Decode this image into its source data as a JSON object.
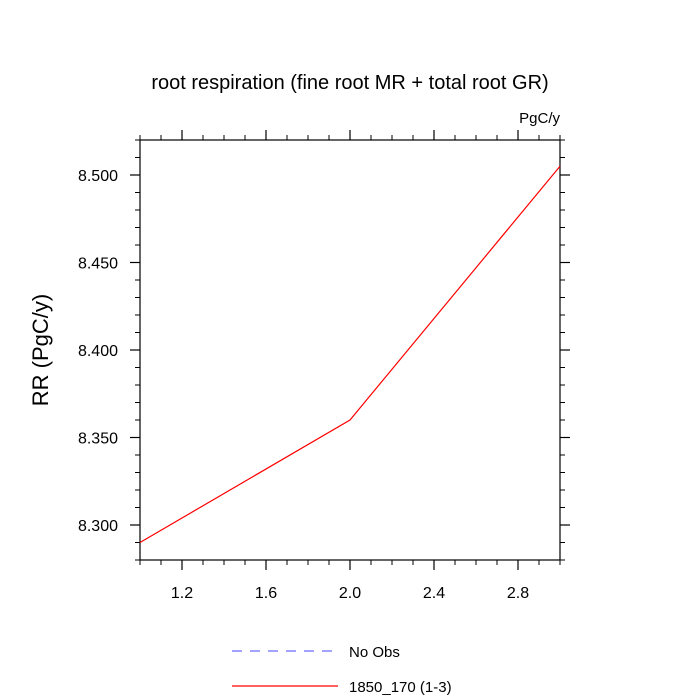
{
  "chart_data": {
    "type": "line",
    "title": "root respiration (fine root MR + total root GR)",
    "units_label": "PgC/y",
    "ylabel": "RR  (PgC/y)",
    "xlabel": "",
    "xlim": [
      1.0,
      3.0
    ],
    "ylim": [
      8.28,
      8.52
    ],
    "x_ticks": [
      1.2,
      1.6,
      2.0,
      2.4,
      2.8
    ],
    "x_tick_labels": [
      "1.2",
      "1.6",
      "2.0",
      "2.4",
      "2.8"
    ],
    "y_ticks": [
      8.3,
      8.35,
      8.4,
      8.45,
      8.5
    ],
    "y_tick_labels": [
      "8.300",
      "8.350",
      "8.400",
      "8.450",
      "8.500"
    ],
    "grid": false,
    "legend_position": "bottom",
    "series": [
      {
        "name": "1850_170 (1-3)",
        "color": "#ff0000",
        "dash": "solid",
        "x": [
          1,
          2,
          3
        ],
        "y": [
          8.29,
          8.36,
          8.505
        ]
      }
    ],
    "legend": [
      {
        "label": "No Obs",
        "color": "#6b6bff",
        "dash": "dashed"
      },
      {
        "label": "1850_170 (1-3)",
        "color": "#ff0000",
        "dash": "solid"
      }
    ]
  }
}
